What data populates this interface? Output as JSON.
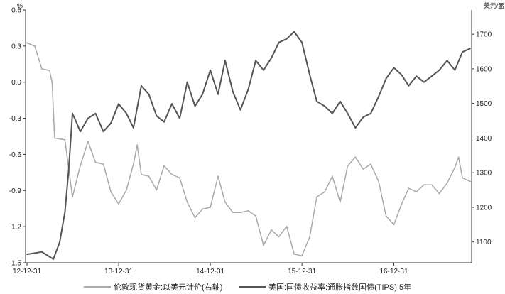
{
  "chart_data": {
    "type": "line",
    "left_axis_unit": "%",
    "right_axis_unit": "美元/盎司",
    "left_axis": {
      "reversed": true,
      "ylim": [
        -1.5,
        0.6
      ],
      "ticks": [
        "0.6",
        "0.3",
        "0.0",
        "-0.3",
        "-0.6",
        "-0.9",
        "-1.2",
        "-1.5"
      ]
    },
    "right_axis": {
      "ylim": [
        1040,
        1770
      ],
      "ticks": [
        "1700",
        "1600",
        "1500",
        "1400",
        "1300",
        "1200",
        "1100"
      ]
    },
    "x_ticks": [
      "12-12-31",
      "13-12-31",
      "14-12-31",
      "15-12-31",
      "16-12-31"
    ],
    "x_range": [
      "2012-12-31",
      "2017-10-31"
    ],
    "grid": false,
    "legend_position": "bottom",
    "series": [
      {
        "name": "伦敦现货黄金:以美元计价(右轴)",
        "axis": "right",
        "color": "#a9a9a9",
        "points": [
          [
            "2012-12-31",
            1675
          ],
          [
            "2013-01-31",
            1665
          ],
          [
            "2013-02-28",
            1600
          ],
          [
            "2013-03-31",
            1595
          ],
          [
            "2013-04-10",
            1560
          ],
          [
            "2013-04-20",
            1400
          ],
          [
            "2013-05-31",
            1395
          ],
          [
            "2013-06-30",
            1230
          ],
          [
            "2013-07-31",
            1320
          ],
          [
            "2013-08-31",
            1390
          ],
          [
            "2013-09-30",
            1330
          ],
          [
            "2013-10-31",
            1325
          ],
          [
            "2013-11-30",
            1245
          ],
          [
            "2013-12-31",
            1210
          ],
          [
            "2014-01-31",
            1250
          ],
          [
            "2014-02-28",
            1325
          ],
          [
            "2014-03-15",
            1380
          ],
          [
            "2014-03-31",
            1295
          ],
          [
            "2014-04-30",
            1290
          ],
          [
            "2014-05-31",
            1250
          ],
          [
            "2014-06-30",
            1320
          ],
          [
            "2014-07-31",
            1295
          ],
          [
            "2014-08-31",
            1285
          ],
          [
            "2014-09-30",
            1215
          ],
          [
            "2014-10-31",
            1170
          ],
          [
            "2014-11-30",
            1195
          ],
          [
            "2014-12-31",
            1200
          ],
          [
            "2015-01-31",
            1290
          ],
          [
            "2015-02-28",
            1215
          ],
          [
            "2015-03-31",
            1185
          ],
          [
            "2015-04-30",
            1185
          ],
          [
            "2015-05-31",
            1190
          ],
          [
            "2015-06-30",
            1175
          ],
          [
            "2015-07-31",
            1090
          ],
          [
            "2015-08-31",
            1135
          ],
          [
            "2015-09-30",
            1115
          ],
          [
            "2015-10-31",
            1145
          ],
          [
            "2015-11-30",
            1065
          ],
          [
            "2015-12-31",
            1060
          ],
          [
            "2016-01-31",
            1115
          ],
          [
            "2016-02-28",
            1230
          ],
          [
            "2016-03-31",
            1245
          ],
          [
            "2016-04-30",
            1290
          ],
          [
            "2016-05-31",
            1215
          ],
          [
            "2016-06-30",
            1320
          ],
          [
            "2016-07-31",
            1345
          ],
          [
            "2016-08-31",
            1310
          ],
          [
            "2016-09-30",
            1325
          ],
          [
            "2016-10-31",
            1275
          ],
          [
            "2016-11-30",
            1175
          ],
          [
            "2016-12-31",
            1150
          ],
          [
            "2017-01-31",
            1210
          ],
          [
            "2017-02-28",
            1255
          ],
          [
            "2017-03-31",
            1245
          ],
          [
            "2017-04-30",
            1265
          ],
          [
            "2017-05-31",
            1265
          ],
          [
            "2017-06-30",
            1240
          ],
          [
            "2017-07-31",
            1270
          ],
          [
            "2017-08-31",
            1315
          ],
          [
            "2017-09-15",
            1345
          ],
          [
            "2017-09-30",
            1285
          ],
          [
            "2017-10-31",
            1275
          ]
        ]
      },
      {
        "name": "美国:国债收益率:通胀指数国债(TIPS):5年",
        "axis": "left",
        "color": "#555555",
        "points": [
          [
            "2012-12-31",
            -1.43
          ],
          [
            "2013-01-31",
            -1.42
          ],
          [
            "2013-02-28",
            -1.41
          ],
          [
            "2013-03-31",
            -1.45
          ],
          [
            "2013-04-15",
            -1.47
          ],
          [
            "2013-05-10",
            -1.33
          ],
          [
            "2013-05-31",
            -1.08
          ],
          [
            "2013-06-15",
            -0.73
          ],
          [
            "2013-06-30",
            -0.26
          ],
          [
            "2013-07-15",
            -0.33
          ],
          [
            "2013-07-31",
            -0.41
          ],
          [
            "2013-08-31",
            -0.3
          ],
          [
            "2013-09-30",
            -0.26
          ],
          [
            "2013-10-31",
            -0.41
          ],
          [
            "2013-11-30",
            -0.34
          ],
          [
            "2013-12-31",
            -0.18
          ],
          [
            "2014-01-31",
            -0.26
          ],
          [
            "2014-02-28",
            -0.38
          ],
          [
            "2014-03-31",
            -0.03
          ],
          [
            "2014-04-30",
            -0.1
          ],
          [
            "2014-05-31",
            -0.28
          ],
          [
            "2014-06-30",
            -0.33
          ],
          [
            "2014-07-31",
            -0.18
          ],
          [
            "2014-08-31",
            -0.3
          ],
          [
            "2014-09-30",
            0.0
          ],
          [
            "2014-10-31",
            -0.2
          ],
          [
            "2014-11-30",
            -0.1
          ],
          [
            "2014-12-31",
            0.1
          ],
          [
            "2015-01-31",
            -0.1
          ],
          [
            "2015-02-28",
            0.18
          ],
          [
            "2015-03-31",
            -0.08
          ],
          [
            "2015-04-30",
            -0.23
          ],
          [
            "2015-05-31",
            -0.06
          ],
          [
            "2015-06-30",
            0.18
          ],
          [
            "2015-07-31",
            0.1
          ],
          [
            "2015-08-31",
            0.2
          ],
          [
            "2015-09-30",
            0.33
          ],
          [
            "2015-10-31",
            0.36
          ],
          [
            "2015-11-30",
            0.42
          ],
          [
            "2015-12-31",
            0.33
          ],
          [
            "2016-01-31",
            0.06
          ],
          [
            "2016-02-28",
            -0.16
          ],
          [
            "2016-03-31",
            -0.2
          ],
          [
            "2016-04-30",
            -0.26
          ],
          [
            "2016-05-31",
            -0.16
          ],
          [
            "2016-06-30",
            -0.26
          ],
          [
            "2016-07-31",
            -0.38
          ],
          [
            "2016-08-31",
            -0.29
          ],
          [
            "2016-09-30",
            -0.26
          ],
          [
            "2016-10-31",
            -0.12
          ],
          [
            "2016-11-30",
            0.03
          ],
          [
            "2016-12-31",
            0.12
          ],
          [
            "2017-01-31",
            0.06
          ],
          [
            "2017-02-28",
            -0.03
          ],
          [
            "2017-03-31",
            0.05
          ],
          [
            "2017-04-30",
            0.0
          ],
          [
            "2017-05-31",
            0.05
          ],
          [
            "2017-06-30",
            0.1
          ],
          [
            "2017-07-31",
            0.18
          ],
          [
            "2017-08-31",
            0.1
          ],
          [
            "2017-09-30",
            0.25
          ],
          [
            "2017-10-31",
            0.28
          ]
        ]
      }
    ]
  }
}
